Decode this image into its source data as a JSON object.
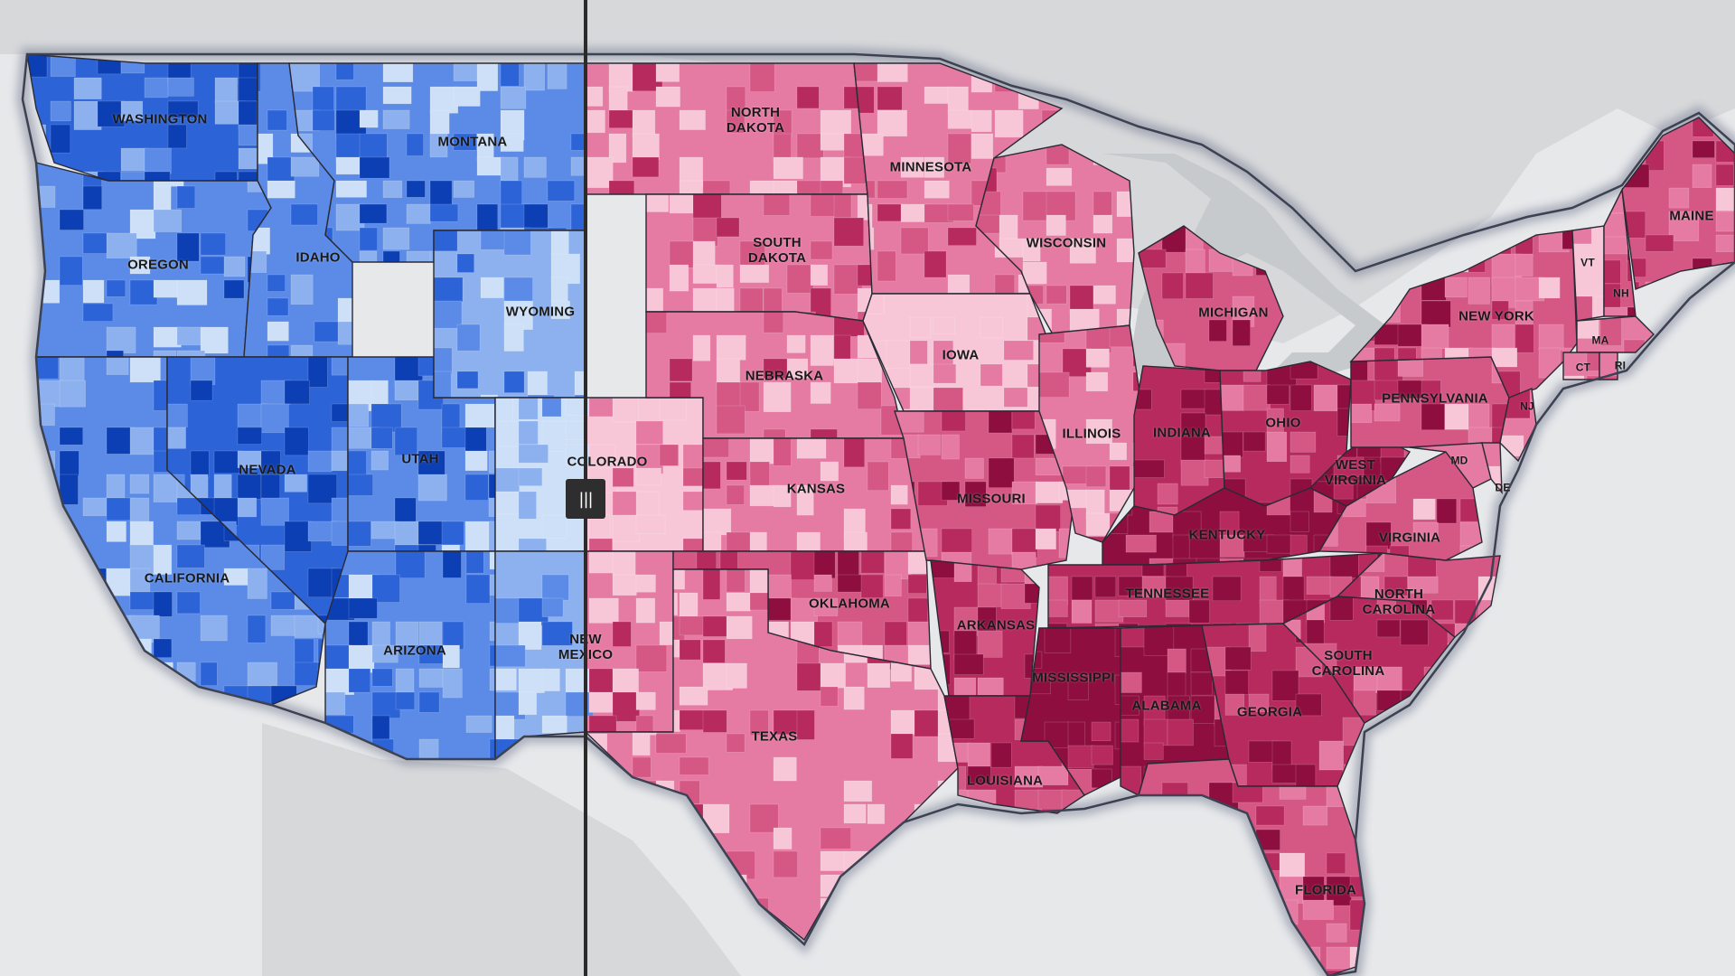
{
  "colors": {
    "water": "#e6e8ea",
    "neighbor_land": "#d4d6d8",
    "blue_scale": [
      "#cde0f7",
      "#8db0ee",
      "#5b8be6",
      "#2c63d6",
      "#0c3fb3"
    ],
    "red_scale": [
      "#f7c7d8",
      "#e57ba2",
      "#d45784",
      "#b72a5e",
      "#8e0f3f"
    ],
    "divider": "#2b2b2b",
    "handle": "#2e2e2e"
  },
  "slider": {
    "icon": "grip-lines-icon",
    "glyph": "|||"
  },
  "states": [
    {
      "id": "washington",
      "label": "WASHINGTON",
      "side": "blue",
      "level": 3
    },
    {
      "id": "oregon",
      "label": "OREGON",
      "side": "blue",
      "level": 2
    },
    {
      "id": "california",
      "label": "CALIFORNIA",
      "side": "blue",
      "level": 2
    },
    {
      "id": "idaho",
      "label": "IDAHO",
      "side": "blue",
      "level": 2
    },
    {
      "id": "nevada",
      "label": "NEVADA",
      "side": "blue",
      "level": 3
    },
    {
      "id": "montana",
      "label": "MONTANA",
      "side": "blue",
      "level": 2
    },
    {
      "id": "utah",
      "label": "UTAH",
      "side": "blue",
      "level": 2
    },
    {
      "id": "arizona",
      "label": "ARIZONA",
      "side": "blue",
      "level": 2
    },
    {
      "id": "wyoming",
      "label": "WYOMING",
      "side": "blue",
      "level": 1
    },
    {
      "id": "colorado",
      "label": "COLORADO",
      "side": "split",
      "level": 0
    },
    {
      "id": "new-mexico",
      "label": "NEW\nMEXICO",
      "side": "split",
      "level": 1
    },
    {
      "id": "north-dakota",
      "label": "NORTH\nDAKOTA",
      "side": "red",
      "level": 1
    },
    {
      "id": "south-dakota",
      "label": "SOUTH\nDAKOTA",
      "side": "red",
      "level": 1
    },
    {
      "id": "nebraska",
      "label": "NEBRASKA",
      "side": "red",
      "level": 1
    },
    {
      "id": "kansas",
      "label": "KANSAS",
      "side": "red",
      "level": 1
    },
    {
      "id": "oklahoma",
      "label": "OKLAHOMA",
      "side": "red",
      "level": 2
    },
    {
      "id": "texas",
      "label": "TEXAS",
      "side": "red",
      "level": 1
    },
    {
      "id": "minnesota",
      "label": "MINNESOTA",
      "side": "red",
      "level": 1
    },
    {
      "id": "iowa",
      "label": "IOWA",
      "side": "red",
      "level": 0
    },
    {
      "id": "missouri",
      "label": "MISSOURI",
      "side": "red",
      "level": 2
    },
    {
      "id": "arkansas",
      "label": "ARKANSAS",
      "side": "red",
      "level": 3
    },
    {
      "id": "louisiana",
      "label": "LOUISIANA",
      "side": "red",
      "level": 3
    },
    {
      "id": "wisconsin",
      "label": "WISCONSIN",
      "side": "red",
      "level": 1
    },
    {
      "id": "illinois",
      "label": "ILLINOIS",
      "side": "red",
      "level": 1
    },
    {
      "id": "michigan",
      "label": "MICHIGAN",
      "side": "red",
      "level": 2
    },
    {
      "id": "indiana",
      "label": "INDIANA",
      "side": "red",
      "level": 3
    },
    {
      "id": "ohio",
      "label": "OHIO",
      "side": "red",
      "level": 3
    },
    {
      "id": "kentucky",
      "label": "KENTUCKY",
      "side": "red",
      "level": 4
    },
    {
      "id": "tennessee",
      "label": "TENNESSEE",
      "side": "red",
      "level": 3
    },
    {
      "id": "mississippi",
      "label": "MISSISSIPPI",
      "side": "red",
      "level": 4
    },
    {
      "id": "alabama",
      "label": "ALABAMA",
      "side": "red",
      "level": 4
    },
    {
      "id": "georgia",
      "label": "GEORGIA",
      "side": "red",
      "level": 3
    },
    {
      "id": "florida",
      "label": "FLORIDA",
      "side": "red",
      "level": 2
    },
    {
      "id": "south-carolina",
      "label": "SOUTH\nCAROLINA",
      "side": "red",
      "level": 3
    },
    {
      "id": "north-carolina",
      "label": "NORTH\nCAROLINA",
      "side": "red",
      "level": 2
    },
    {
      "id": "virginia",
      "label": "VIRGINIA",
      "side": "red",
      "level": 2
    },
    {
      "id": "west-virginia",
      "label": "WEST\nVIRGINIA",
      "side": "red",
      "level": 4
    },
    {
      "id": "pennsylvania",
      "label": "PENNSYLVANIA",
      "side": "red",
      "level": 2
    },
    {
      "id": "new-york",
      "label": "NEW YORK",
      "side": "red",
      "level": 2
    },
    {
      "id": "vermont",
      "label": "VT",
      "side": "red",
      "level": 0
    },
    {
      "id": "new-hampshire",
      "label": "NH",
      "side": "red",
      "level": 2
    },
    {
      "id": "maine",
      "label": "MAINE",
      "side": "red",
      "level": 2
    },
    {
      "id": "massachusetts",
      "label": "MA",
      "side": "red",
      "level": 1
    },
    {
      "id": "connecticut",
      "label": "CT",
      "side": "red",
      "level": 1
    },
    {
      "id": "rhode-island",
      "label": "RI",
      "side": "red",
      "level": 1
    },
    {
      "id": "new-jersey",
      "label": "NJ",
      "side": "red",
      "level": 1
    },
    {
      "id": "maryland",
      "label": "MD",
      "side": "red",
      "level": 1
    },
    {
      "id": "delaware",
      "label": "DE",
      "side": "red",
      "level": 1
    }
  ]
}
